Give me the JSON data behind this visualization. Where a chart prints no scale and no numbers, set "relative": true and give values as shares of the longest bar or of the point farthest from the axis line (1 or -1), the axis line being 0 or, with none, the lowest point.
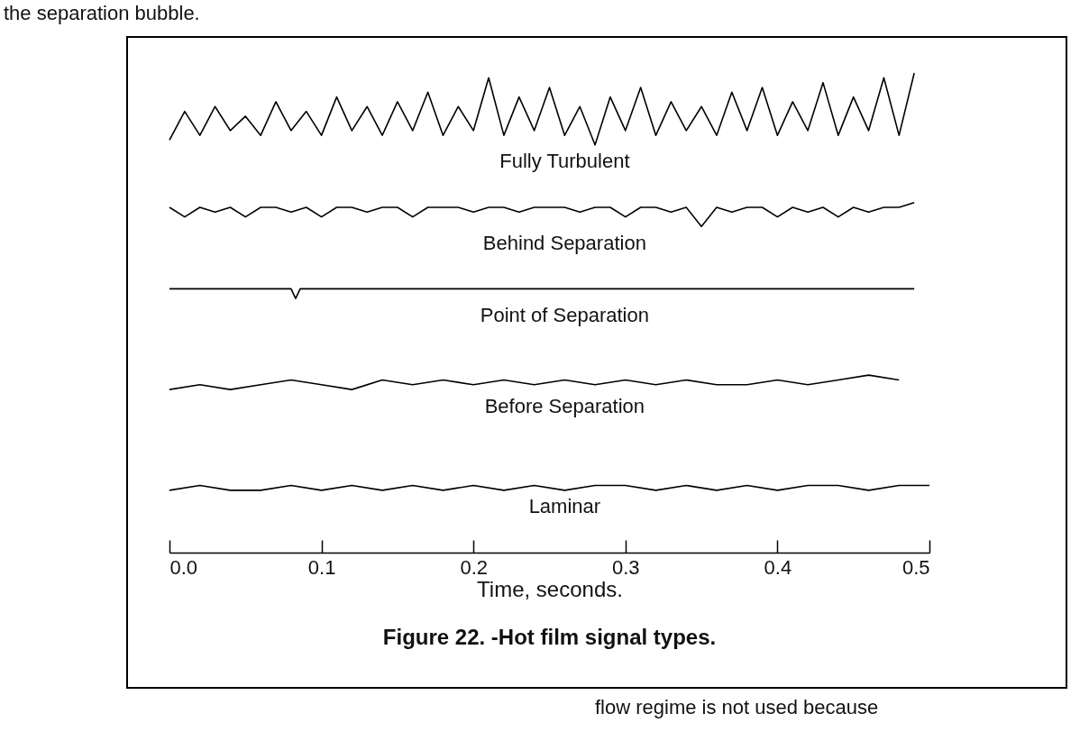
{
  "chart_data": {
    "type": "line",
    "title": "Figure 22. -Hot film signal types.",
    "xlabel": "Time, seconds.",
    "relative": true,
    "legend": false,
    "marker": "none",
    "line_style": "solid",
    "annotations": [
      "the separation bubble.",
      "flow regime is not used because"
    ],
    "xlim": [
      0,
      0.5
    ],
    "xticks": [
      {
        "value": 0,
        "label": "0.0"
      },
      0.1,
      0.2,
      0.3,
      0.4,
      0.5
    ],
    "series": [
      {
        "name": "Fully Turbulent",
        "color": "#000000",
        "x": [
          0,
          0.01,
          0.02,
          0.03,
          0.04,
          0.05,
          0.06,
          0.07,
          0.08,
          0.09,
          0.1,
          0.11,
          0.12,
          0.13,
          0.14,
          0.15,
          0.16,
          0.17,
          0.18,
          0.19,
          0.2,
          0.21,
          0.22,
          0.23,
          0.24,
          0.25,
          0.26,
          0.27,
          0.28,
          0.29,
          0.3,
          0.31,
          0.32,
          0.33,
          0.34,
          0.35,
          0.36,
          0.37,
          0.38,
          0.39,
          0.4,
          0.41,
          0.42,
          0.43,
          0.44,
          0.45,
          0.46,
          0.47,
          0.48,
          0.49
        ],
        "values": [
          0.86,
          0.92,
          0.87,
          0.93,
          0.88,
          0.91,
          0.87,
          0.94,
          0.88,
          0.92,
          0.87,
          0.95,
          0.88,
          0.93,
          0.87,
          0.94,
          0.88,
          0.96,
          0.87,
          0.93,
          0.88,
          0.99,
          0.87,
          0.95,
          0.88,
          0.97,
          0.87,
          0.93,
          0.85,
          0.95,
          0.88,
          0.97,
          0.87,
          0.94,
          0.88,
          0.93,
          0.87,
          0.96,
          0.88,
          0.97,
          0.87,
          0.94,
          0.88,
          0.98,
          0.87,
          0.95,
          0.88,
          0.99,
          0.87,
          1.0
        ]
      },
      {
        "name": "Behind Separation",
        "color": "#000000",
        "x": [
          0,
          0.01,
          0.02,
          0.03,
          0.04,
          0.05,
          0.06,
          0.07,
          0.08,
          0.09,
          0.1,
          0.11,
          0.12,
          0.13,
          0.14,
          0.15,
          0.16,
          0.17,
          0.18,
          0.19,
          0.2,
          0.21,
          0.22,
          0.23,
          0.24,
          0.25,
          0.26,
          0.27,
          0.28,
          0.29,
          0.3,
          0.31,
          0.32,
          0.33,
          0.34,
          0.35,
          0.36,
          0.37,
          0.38,
          0.39,
          0.4,
          0.41,
          0.42,
          0.43,
          0.44,
          0.45,
          0.46,
          0.47,
          0.48,
          0.49
        ],
        "values": [
          0.72,
          0.7,
          0.72,
          0.71,
          0.72,
          0.7,
          0.72,
          0.72,
          0.71,
          0.72,
          0.7,
          0.72,
          0.72,
          0.71,
          0.72,
          0.72,
          0.7,
          0.72,
          0.72,
          0.72,
          0.71,
          0.72,
          0.72,
          0.71,
          0.72,
          0.72,
          0.72,
          0.71,
          0.72,
          0.72,
          0.7,
          0.72,
          0.72,
          0.71,
          0.72,
          0.68,
          0.72,
          0.71,
          0.72,
          0.72,
          0.7,
          0.72,
          0.71,
          0.72,
          0.7,
          0.72,
          0.71,
          0.72,
          0.72,
          0.73
        ]
      },
      {
        "name": "Point of Separation",
        "color": "#000000",
        "x": [
          0,
          0.04,
          0.08,
          0.083,
          0.086,
          0.1,
          0.2,
          0.3,
          0.4,
          0.49
        ],
        "values": [
          0.55,
          0.55,
          0.55,
          0.53,
          0.55,
          0.55,
          0.55,
          0.55,
          0.55,
          0.55
        ]
      },
      {
        "name": "Before Separation",
        "color": "#000000",
        "x": [
          0,
          0.02,
          0.04,
          0.06,
          0.08,
          0.1,
          0.12,
          0.14,
          0.16,
          0.18,
          0.2,
          0.22,
          0.24,
          0.26,
          0.28,
          0.3,
          0.32,
          0.34,
          0.36,
          0.38,
          0.4,
          0.42,
          0.44,
          0.46,
          0.48
        ],
        "values": [
          0.34,
          0.35,
          0.34,
          0.35,
          0.36,
          0.35,
          0.34,
          0.36,
          0.35,
          0.36,
          0.35,
          0.36,
          0.35,
          0.36,
          0.35,
          0.36,
          0.35,
          0.36,
          0.35,
          0.35,
          0.36,
          0.35,
          0.36,
          0.37,
          0.36
        ]
      },
      {
        "name": "Laminar",
        "color": "#000000",
        "x": [
          0,
          0.02,
          0.04,
          0.06,
          0.08,
          0.1,
          0.12,
          0.14,
          0.16,
          0.18,
          0.2,
          0.22,
          0.24,
          0.26,
          0.28,
          0.3,
          0.32,
          0.34,
          0.36,
          0.38,
          0.4,
          0.42,
          0.44,
          0.46,
          0.48,
          0.5
        ],
        "values": [
          0.13,
          0.14,
          0.13,
          0.13,
          0.14,
          0.13,
          0.14,
          0.13,
          0.14,
          0.13,
          0.14,
          0.13,
          0.14,
          0.13,
          0.14,
          0.14,
          0.13,
          0.14,
          0.13,
          0.14,
          0.13,
          0.14,
          0.14,
          0.13,
          0.14,
          0.14
        ]
      }
    ]
  }
}
